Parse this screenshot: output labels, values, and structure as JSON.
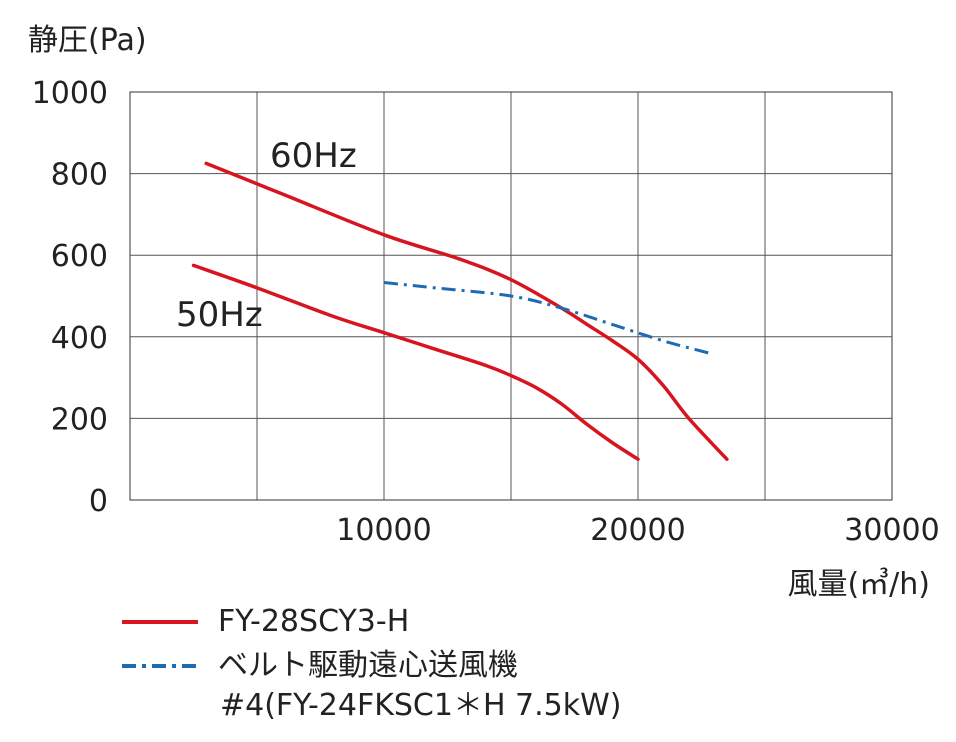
{
  "chart_data": {
    "type": "line",
    "ylabel": "静圧(Pa)",
    "xlabel": "風量(㎥/h)",
    "xlim": [
      0,
      30000
    ],
    "ylim": [
      0,
      1000
    ],
    "xticks": [
      10000,
      20000,
      30000
    ],
    "yticks": [
      0,
      200,
      400,
      600,
      800,
      1000
    ],
    "grid": true,
    "annotations": [
      "60Hz",
      "50Hz"
    ],
    "series": [
      {
        "name": "FY-28SCY3-H",
        "label": "60Hz",
        "color": "#d7141f",
        "style": "solid",
        "x": [
          3000,
          6000,
          10000,
          13000,
          15000,
          17000,
          18000,
          19000,
          20000,
          21000,
          22000,
          23500
        ],
        "y": [
          825,
          750,
          650,
          590,
          540,
          470,
          430,
          390,
          345,
          280,
          200,
          100
        ]
      },
      {
        "name": "FY-28SCY3-H",
        "label": "50Hz",
        "color": "#d7141f",
        "style": "solid",
        "x": [
          2500,
          5000,
          8000,
          10000,
          12000,
          14000,
          15000,
          16000,
          17000,
          18000,
          19000,
          20000
        ],
        "y": [
          575,
          520,
          450,
          410,
          370,
          330,
          305,
          275,
          235,
          185,
          140,
          100
        ]
      },
      {
        "name": "ベルト駆動遠心送風機 #4(FY-24FKSC1＊H 7.5kW)",
        "color": "#1f6bb3",
        "style": "dashdot",
        "x": [
          10000,
          12000,
          15000,
          17000,
          19000,
          21000,
          22800
        ],
        "y": [
          533,
          520,
          500,
          470,
          430,
          390,
          360
        ]
      }
    ]
  },
  "legend": {
    "items": [
      {
        "label": "FY-28SCY3-H",
        "color": "#d7141f",
        "style": "solid"
      },
      {
        "label": "ベルト駆動遠心送風機",
        "sublabel": "#4(FY-24FKSC1＊H 7.5kW)",
        "color": "#1f6bb3",
        "style": "dashdot"
      }
    ]
  }
}
